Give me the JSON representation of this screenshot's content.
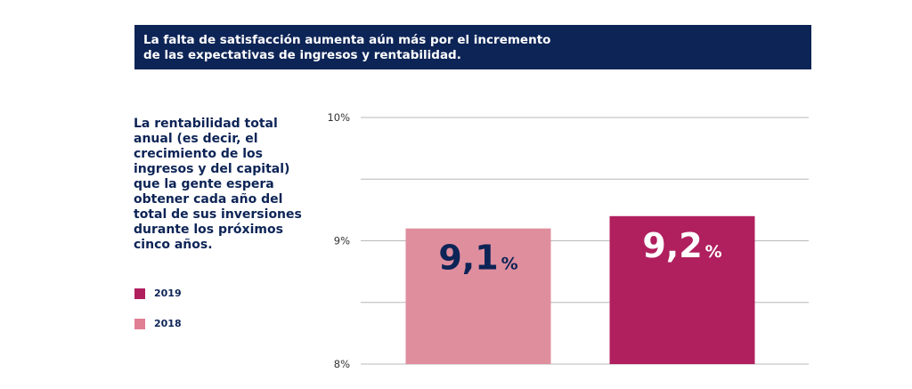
{
  "header": {
    "title_lines": [
      "La falta de satisfacción aumenta aún más por el incremento",
      "de las expectativas de ingresos y rentabilidad."
    ]
  },
  "description_lines": [
    "La rentabilidad total",
    "anual (es decir, el",
    "crecimiento de los",
    "ingresos y del capital)",
    "que la gente espera",
    "obtener cada año del",
    "total de sus inversiones",
    "durante los próximos",
    "cinco años."
  ],
  "legend": [
    {
      "label": "2019",
      "color": "#b01f5e"
    },
    {
      "label": "2018",
      "color": "#e07e93"
    }
  ],
  "chart_data": {
    "type": "bar",
    "categories": [
      "2018",
      "2019"
    ],
    "values": [
      9.1,
      9.2
    ],
    "value_labels": [
      {
        "number": "9,1",
        "unit": "%"
      },
      {
        "number": "9,2",
        "unit": "%"
      }
    ],
    "colors": [
      "#df8e9e",
      "#b01f5e"
    ],
    "label_colors": [
      "#0d2456",
      "#ffffff"
    ],
    "ylim": [
      8,
      10
    ],
    "yticks": [
      {
        "value": 10,
        "label": "10%"
      },
      {
        "value": 9.5,
        "label": ""
      },
      {
        "value": 9,
        "label": "9%"
      },
      {
        "value": 8.5,
        "label": ""
      },
      {
        "value": 8,
        "label": "8%"
      }
    ],
    "title": "",
    "xlabel": "",
    "ylabel": "",
    "grid": true,
    "legend_position": "left"
  }
}
